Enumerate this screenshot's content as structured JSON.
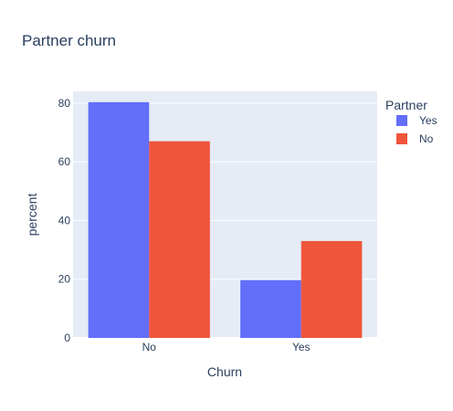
{
  "chart_data": {
    "type": "bar",
    "title": "Partner churn",
    "xlabel": "Churn",
    "ylabel": "percent",
    "categories": [
      "No",
      "Yes"
    ],
    "series": [
      {
        "name": "Yes",
        "values": [
          80.3,
          19.7
        ],
        "color": "#636efa"
      },
      {
        "name": "No",
        "values": [
          67.0,
          33.0
        ],
        "color": "#ef553b"
      }
    ],
    "ylim": [
      0,
      84
    ],
    "yticks": [
      0,
      20,
      40,
      60,
      80
    ],
    "grid": true,
    "legend": {
      "title": "Partner",
      "placement": "top-right"
    },
    "background": "#e5ecf6",
    "text_color": "#2a3f5f"
  }
}
